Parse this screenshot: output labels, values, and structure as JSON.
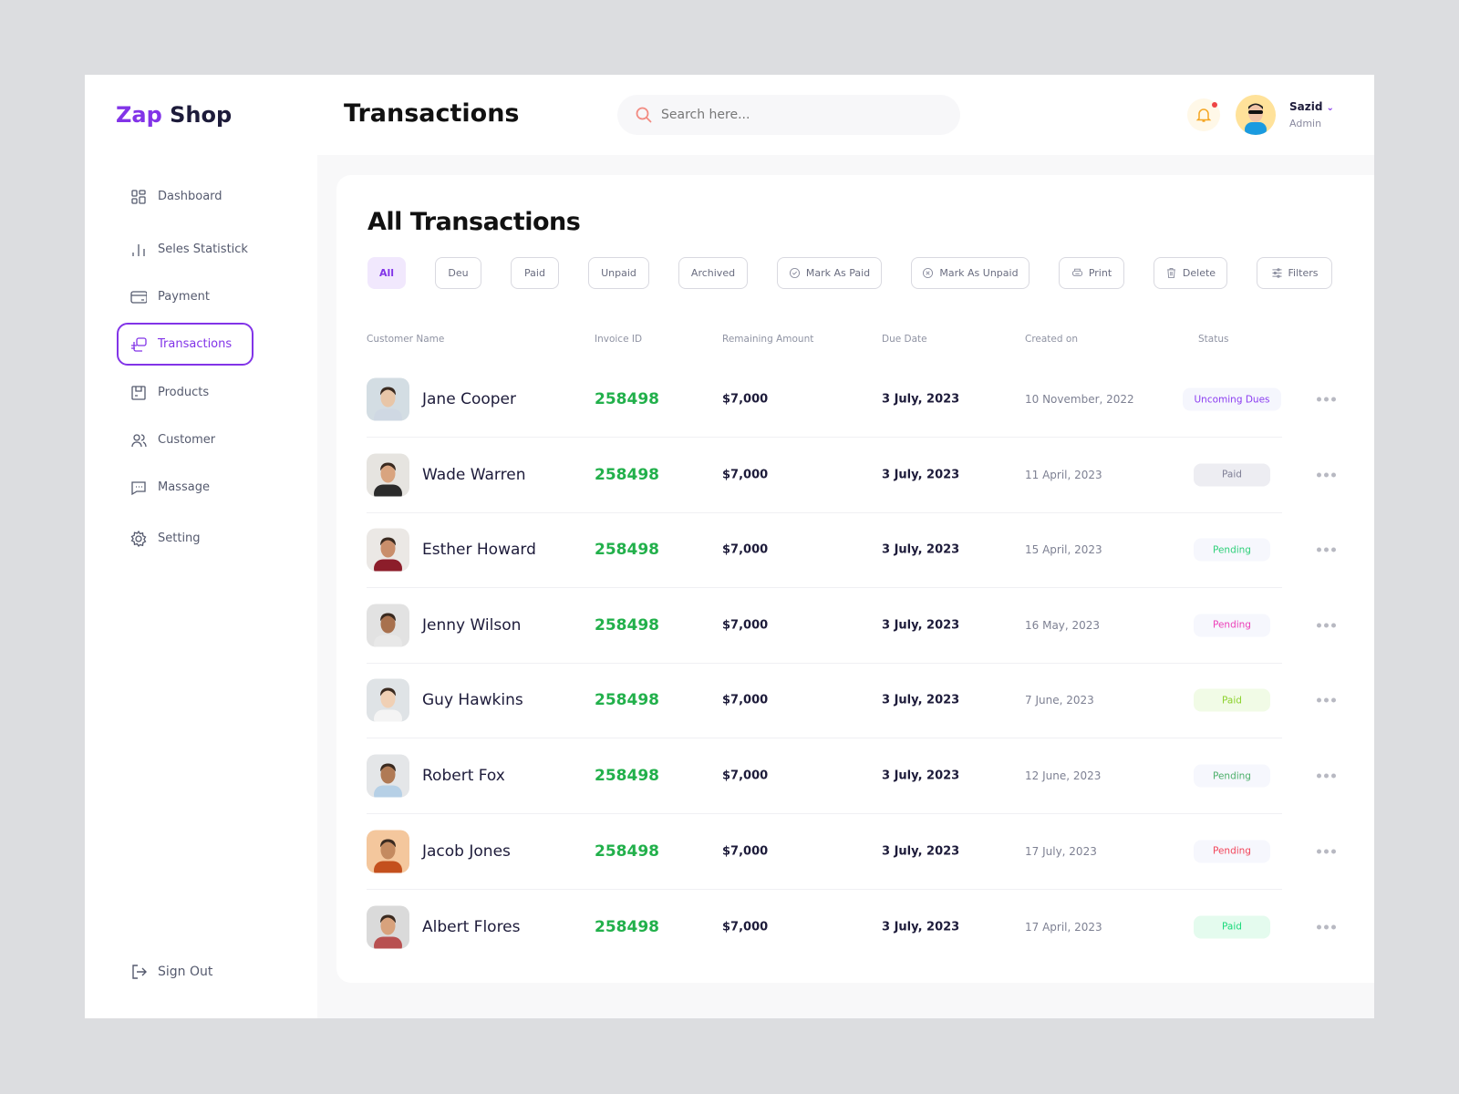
{
  "brand": {
    "part1": "Zap",
    "part2": " Shop",
    "accent": "#8234e8"
  },
  "header": {
    "title": "Transactions",
    "search_placeholder": "Search here...",
    "user_name": "Sazid",
    "user_role": "Admin"
  },
  "sidebar": {
    "items": [
      {
        "label": "Dashboard",
        "icon": "grid-icon"
      },
      {
        "label": "Seles Statistick",
        "icon": "bar-chart-icon"
      },
      {
        "label": "Payment",
        "icon": "credit-card-icon"
      },
      {
        "label": "Transactions",
        "icon": "transactions-icon",
        "active": true
      },
      {
        "label": "Products",
        "icon": "box-icon"
      },
      {
        "label": "Customer",
        "icon": "users-icon"
      },
      {
        "label": "Massage",
        "icon": "message-icon"
      },
      {
        "label": "Setting",
        "icon": "gear-icon"
      }
    ],
    "signout": "Sign Out"
  },
  "main": {
    "title": "All Transactions",
    "filters": [
      "All",
      "Deu",
      "Paid",
      "Unpaid",
      "Archived"
    ],
    "actions": [
      {
        "label": "Mark As Paid",
        "icon": "check-circle-icon"
      },
      {
        "label": "Mark As Unpaid",
        "icon": "x-circle-icon"
      },
      {
        "label": "Print",
        "icon": "printer-icon"
      },
      {
        "label": "Delete",
        "icon": "trash-icon"
      },
      {
        "label": "Filters",
        "icon": "sliders-icon"
      }
    ],
    "columns": [
      "Customer Name",
      "Invoice ID",
      "Remaining Amount",
      "Due Date",
      "Created on",
      "Status"
    ],
    "rows": [
      {
        "name": "Jane Cooper",
        "invoice": "258498",
        "amount": "$7,000",
        "due": "3 July, 2023",
        "created": "10 November, 2022",
        "status": "Uncoming Dues",
        "color": "#8b3cf0",
        "bg": "#f5f6fd"
      },
      {
        "name": "Wade Warren",
        "invoice": "258498",
        "amount": "$7,000",
        "due": "3 July, 2023",
        "created": "11 April, 2023",
        "status": "Paid",
        "color": "#7e7e95",
        "bg": "#ededf2"
      },
      {
        "name": "Esther Howard",
        "invoice": "258498",
        "amount": "$7,000",
        "due": "3 July, 2023",
        "created": "15 April, 2023",
        "status": "Pending",
        "color": "#2fd07a",
        "bg": "#f6f7fd"
      },
      {
        "name": "Jenny Wilson",
        "invoice": "258498",
        "amount": "$7,000",
        "due": "3 July, 2023",
        "created": "16 May, 2023",
        "status": "Pending",
        "color": "#ec3fb8",
        "bg": "#f6f7fd"
      },
      {
        "name": "Guy Hawkins",
        "invoice": "258498",
        "amount": "$7,000",
        "due": "3 July, 2023",
        "created": "7 June, 2023",
        "status": "Paid",
        "color": "#8bd12b",
        "bg": "#f1fbe6"
      },
      {
        "name": "Robert Fox",
        "invoice": "258498",
        "amount": "$7,000",
        "due": "3 July, 2023",
        "created": "12 June, 2023",
        "status": "Pending",
        "color": "#4caf6a",
        "bg": "#f6f7fd"
      },
      {
        "name": "Jacob Jones",
        "invoice": "258498",
        "amount": "$7,000",
        "due": "3 July, 2023",
        "created": "17  July, 2023",
        "status": "Pending",
        "color": "#f2455a",
        "bg": "#f6f7fd"
      },
      {
        "name": "Albert Flores",
        "invoice": "258498",
        "amount": "$7,000",
        "due": "3 July, 2023",
        "created": "17 April, 2023",
        "status": "Paid",
        "color": "#19d97a",
        "bg": "#e4fbee"
      }
    ]
  }
}
